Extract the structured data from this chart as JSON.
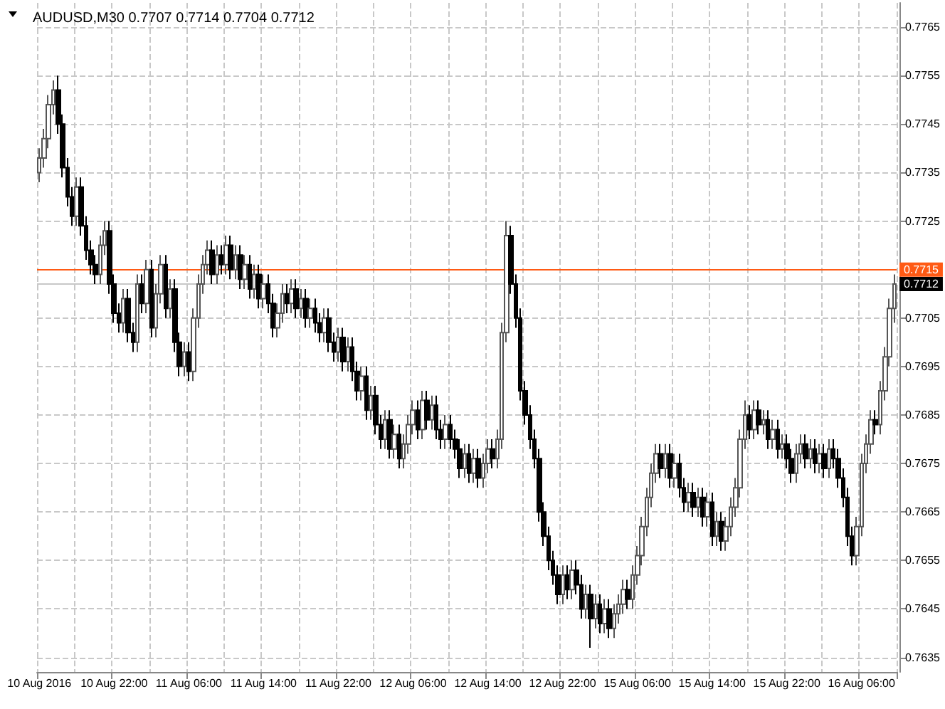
{
  "chart_data": {
    "type": "candlestick",
    "title": "AUDUSD,M30 0.7707 0.7714 0.7704 0.7712",
    "categories": [
      "10 Aug 2016",
      null,
      null,
      null,
      null,
      null,
      null,
      null,
      null,
      null,
      null,
      null,
      null,
      null,
      null,
      null,
      "10 Aug 22:00",
      null,
      null,
      null,
      null,
      null,
      null,
      null,
      null,
      null,
      null,
      null,
      null,
      null,
      null,
      null,
      "11 Aug 06:00",
      null,
      null,
      null,
      null,
      null,
      null,
      null,
      null,
      null,
      null,
      null,
      null,
      null,
      null,
      null,
      "11 Aug 14:00",
      null,
      null,
      null,
      null,
      null,
      null,
      null,
      null,
      null,
      null,
      null,
      null,
      null,
      null,
      null,
      "11 Aug 22:00",
      null,
      null,
      null,
      null,
      null,
      null,
      null,
      null,
      null,
      null,
      null,
      null,
      null,
      null,
      null,
      "12 Aug 06:00",
      null,
      null,
      null,
      null,
      null,
      null,
      null,
      null,
      null,
      null,
      null,
      null,
      null,
      null,
      null,
      "12 Aug 14:00",
      null,
      null,
      null,
      null,
      null,
      null,
      null,
      null,
      null,
      null,
      null,
      null,
      null,
      null,
      null,
      "12 Aug 22:00",
      null,
      null,
      null,
      null,
      null,
      null,
      null,
      null,
      null,
      null,
      null,
      null,
      null,
      null,
      null,
      "15 Aug 06:00",
      null,
      null,
      null,
      null,
      null,
      null,
      null,
      null,
      null,
      null,
      null,
      null,
      null,
      null,
      null,
      "15 Aug 14:00",
      null,
      null,
      null,
      null,
      null,
      null,
      null,
      null,
      null,
      null,
      null,
      null,
      null,
      null,
      null,
      "15 Aug 22:00",
      null,
      null,
      null,
      null,
      null,
      null,
      null,
      null,
      null,
      null,
      null,
      null,
      null,
      null,
      null,
      "16 Aug 06:00",
      null,
      null,
      null,
      null,
      null,
      null,
      null
    ],
    "ohlc": [
      [
        0.7735,
        0.774,
        0.7733,
        0.7738
      ],
      [
        0.7738,
        0.7744,
        0.7736,
        0.7742
      ],
      [
        0.7742,
        0.7751,
        0.774,
        0.7749
      ],
      [
        0.7749,
        0.7754,
        0.7747,
        0.7752
      ],
      [
        0.7752,
        0.7755,
        0.7743,
        0.7745
      ],
      [
        0.7745,
        0.7747,
        0.7734,
        0.7736
      ],
      [
        0.7736,
        0.7738,
        0.7728,
        0.773
      ],
      [
        0.773,
        0.7732,
        0.7724,
        0.7726
      ],
      [
        0.7726,
        0.7734,
        0.7724,
        0.7732
      ],
      [
        0.7732,
        0.7734,
        0.7722,
        0.7724
      ],
      [
        0.7724,
        0.7726,
        0.7717,
        0.7719
      ],
      [
        0.7719,
        0.7721,
        0.7714,
        0.7716
      ],
      [
        0.7716,
        0.7718,
        0.7712,
        0.7714
      ],
      [
        0.7714,
        0.7722,
        0.7712,
        0.772
      ],
      [
        0.772,
        0.7725,
        0.7718,
        0.7723
      ],
      [
        0.7723,
        0.7725,
        0.771,
        0.7712
      ],
      [
        0.7712,
        0.7714,
        0.7704,
        0.7706
      ],
      [
        0.7706,
        0.7708,
        0.7702,
        0.7704
      ],
      [
        0.7704,
        0.7711,
        0.7702,
        0.7709
      ],
      [
        0.7709,
        0.7711,
        0.77,
        0.7702
      ],
      [
        0.7702,
        0.7704,
        0.7698,
        0.77
      ],
      [
        0.77,
        0.7714,
        0.7698,
        0.7712
      ],
      [
        0.7712,
        0.7714,
        0.7706,
        0.7708
      ],
      [
        0.7708,
        0.7717,
        0.7706,
        0.7715
      ],
      [
        0.7715,
        0.7717,
        0.7701,
        0.7703
      ],
      [
        0.7703,
        0.7712,
        0.7701,
        0.771
      ],
      [
        0.771,
        0.7718,
        0.7708,
        0.7716
      ],
      [
        0.7716,
        0.7718,
        0.7705,
        0.7707
      ],
      [
        0.7707,
        0.7713,
        0.7705,
        0.7711
      ],
      [
        0.7711,
        0.7713,
        0.7698,
        0.77
      ],
      [
        0.77,
        0.7702,
        0.7693,
        0.7695
      ],
      [
        0.7695,
        0.77,
        0.7693,
        0.7698
      ],
      [
        0.7698,
        0.77,
        0.7692,
        0.7694
      ],
      [
        0.7694,
        0.7707,
        0.7692,
        0.7705
      ],
      [
        0.7705,
        0.7714,
        0.7703,
        0.7712
      ],
      [
        0.7712,
        0.7718,
        0.771,
        0.7716
      ],
      [
        0.7716,
        0.7721,
        0.7714,
        0.7719
      ],
      [
        0.7719,
        0.7721,
        0.7712,
        0.7714
      ],
      [
        0.7714,
        0.772,
        0.7712,
        0.7718
      ],
      [
        0.7718,
        0.772,
        0.7714,
        0.7716
      ],
      [
        0.7716,
        0.7722,
        0.7714,
        0.772
      ],
      [
        0.772,
        0.7722,
        0.7713,
        0.7715
      ],
      [
        0.7715,
        0.772,
        0.7713,
        0.7718
      ],
      [
        0.7718,
        0.772,
        0.7711,
        0.7713
      ],
      [
        0.7713,
        0.7718,
        0.7711,
        0.7716
      ],
      [
        0.7716,
        0.7718,
        0.7709,
        0.7711
      ],
      [
        0.7711,
        0.7716,
        0.7709,
        0.7714
      ],
      [
        0.7714,
        0.7716,
        0.7707,
        0.7709
      ],
      [
        0.7709,
        0.7714,
        0.7707,
        0.7712
      ],
      [
        0.7712,
        0.7714,
        0.7706,
        0.7708
      ],
      [
        0.7708,
        0.771,
        0.7701,
        0.7703
      ],
      [
        0.7703,
        0.7708,
        0.7701,
        0.7706
      ],
      [
        0.7706,
        0.7712,
        0.7704,
        0.771
      ],
      [
        0.771,
        0.7712,
        0.7706,
        0.7708
      ],
      [
        0.7708,
        0.7713,
        0.7706,
        0.7711
      ],
      [
        0.7711,
        0.7713,
        0.7705,
        0.7707
      ],
      [
        0.7707,
        0.7711,
        0.7705,
        0.7709
      ],
      [
        0.7709,
        0.7711,
        0.7703,
        0.7705
      ],
      [
        0.7705,
        0.7709,
        0.7703,
        0.7707
      ],
      [
        0.7707,
        0.7709,
        0.7702,
        0.7704
      ],
      [
        0.7704,
        0.7706,
        0.77,
        0.7702
      ],
      [
        0.7702,
        0.7707,
        0.77,
        0.7705
      ],
      [
        0.7705,
        0.7707,
        0.7698,
        0.77
      ],
      [
        0.77,
        0.7702,
        0.7696,
        0.7698
      ],
      [
        0.7698,
        0.7703,
        0.7696,
        0.7701
      ],
      [
        0.7701,
        0.7703,
        0.7694,
        0.7696
      ],
      [
        0.7696,
        0.7701,
        0.7694,
        0.7699
      ],
      [
        0.7699,
        0.7701,
        0.7692,
        0.7694
      ],
      [
        0.7694,
        0.7696,
        0.7688,
        0.769
      ],
      [
        0.769,
        0.7695,
        0.7688,
        0.7693
      ],
      [
        0.7693,
        0.7695,
        0.7684,
        0.7686
      ],
      [
        0.7686,
        0.7691,
        0.7684,
        0.7689
      ],
      [
        0.7689,
        0.7691,
        0.7681,
        0.7683
      ],
      [
        0.7683,
        0.7685,
        0.7678,
        0.768
      ],
      [
        0.768,
        0.7686,
        0.7678,
        0.7684
      ],
      [
        0.7684,
        0.7686,
        0.7676,
        0.7678
      ],
      [
        0.7678,
        0.7683,
        0.7676,
        0.7681
      ],
      [
        0.7681,
        0.7683,
        0.7674,
        0.7676
      ],
      [
        0.7676,
        0.7681,
        0.7674,
        0.7679
      ],
      [
        0.7679,
        0.7685,
        0.7677,
        0.7683
      ],
      [
        0.7683,
        0.7688,
        0.7681,
        0.7686
      ],
      [
        0.7686,
        0.7688,
        0.768,
        0.7682
      ],
      [
        0.7682,
        0.769,
        0.768,
        0.7688
      ],
      [
        0.7688,
        0.769,
        0.7682,
        0.7684
      ],
      [
        0.7684,
        0.7689,
        0.7682,
        0.7687
      ],
      [
        0.7687,
        0.7689,
        0.768,
        0.7682
      ],
      [
        0.7682,
        0.7684,
        0.7678,
        0.768
      ],
      [
        0.768,
        0.7685,
        0.7678,
        0.7683
      ],
      [
        0.7683,
        0.7685,
        0.7678,
        0.768
      ],
      [
        0.768,
        0.7682,
        0.7676,
        0.7678
      ],
      [
        0.7678,
        0.768,
        0.7672,
        0.7674
      ],
      [
        0.7674,
        0.7679,
        0.7672,
        0.7677
      ],
      [
        0.7677,
        0.7679,
        0.7671,
        0.7673
      ],
      [
        0.7673,
        0.7678,
        0.7671,
        0.7676
      ],
      [
        0.7676,
        0.7678,
        0.767,
        0.7672
      ],
      [
        0.7672,
        0.7677,
        0.767,
        0.7675
      ],
      [
        0.7675,
        0.768,
        0.7673,
        0.7678
      ],
      [
        0.7678,
        0.768,
        0.7674,
        0.7676
      ],
      [
        0.7676,
        0.7682,
        0.7674,
        0.768
      ],
      [
        0.768,
        0.7704,
        0.7678,
        0.7702
      ],
      [
        0.7702,
        0.7725,
        0.77,
        0.7722
      ],
      [
        0.7722,
        0.7724,
        0.771,
        0.7712
      ],
      [
        0.7712,
        0.7714,
        0.7703,
        0.7705
      ],
      [
        0.7705,
        0.7707,
        0.7688,
        0.769
      ],
      [
        0.769,
        0.7692,
        0.7683,
        0.7685
      ],
      [
        0.7685,
        0.7687,
        0.7678,
        0.768
      ],
      [
        0.768,
        0.7682,
        0.7674,
        0.7676
      ],
      [
        0.7676,
        0.7678,
        0.7663,
        0.7665
      ],
      [
        0.7665,
        0.7667,
        0.7658,
        0.766
      ],
      [
        0.766,
        0.7662,
        0.7653,
        0.7655
      ],
      [
        0.7655,
        0.7657,
        0.765,
        0.7652
      ],
      [
        0.7652,
        0.7654,
        0.7646,
        0.7648
      ],
      [
        0.7648,
        0.7654,
        0.7646,
        0.7652
      ],
      [
        0.7652,
        0.7654,
        0.7647,
        0.7649
      ],
      [
        0.7649,
        0.7655,
        0.7647,
        0.7653
      ],
      [
        0.7653,
        0.7655,
        0.7648,
        0.765
      ],
      [
        0.765,
        0.7652,
        0.7643,
        0.7645
      ],
      [
        0.7645,
        0.765,
        0.7643,
        0.7648
      ],
      [
        0.7648,
        0.765,
        0.7637,
        0.7643
      ],
      [
        0.7643,
        0.7648,
        0.7641,
        0.7646
      ],
      [
        0.7646,
        0.7648,
        0.764,
        0.7642
      ],
      [
        0.7642,
        0.7647,
        0.764,
        0.7645
      ],
      [
        0.7645,
        0.7647,
        0.7639,
        0.7641
      ],
      [
        0.7641,
        0.7646,
        0.7639,
        0.7644
      ],
      [
        0.7644,
        0.7648,
        0.7642,
        0.7646
      ],
      [
        0.7646,
        0.7651,
        0.7644,
        0.7649
      ],
      [
        0.7649,
        0.7651,
        0.7645,
        0.7647
      ],
      [
        0.7647,
        0.7654,
        0.7645,
        0.7652
      ],
      [
        0.7652,
        0.7658,
        0.765,
        0.7656
      ],
      [
        0.7656,
        0.7664,
        0.7654,
        0.7662
      ],
      [
        0.7662,
        0.767,
        0.766,
        0.7668
      ],
      [
        0.7668,
        0.7675,
        0.7666,
        0.7673
      ],
      [
        0.7673,
        0.7679,
        0.7671,
        0.7677
      ],
      [
        0.7677,
        0.7679,
        0.7672,
        0.7674
      ],
      [
        0.7674,
        0.7679,
        0.7672,
        0.7677
      ],
      [
        0.7677,
        0.7679,
        0.767,
        0.7672
      ],
      [
        0.7672,
        0.7677,
        0.767,
        0.7675
      ],
      [
        0.7675,
        0.7677,
        0.7668,
        0.767
      ],
      [
        0.767,
        0.7672,
        0.7665,
        0.7667
      ],
      [
        0.7667,
        0.7671,
        0.7665,
        0.7669
      ],
      [
        0.7669,
        0.7671,
        0.7664,
        0.7666
      ],
      [
        0.7666,
        0.767,
        0.7664,
        0.7668
      ],
      [
        0.7668,
        0.767,
        0.7662,
        0.7664
      ],
      [
        0.7664,
        0.7669,
        0.7662,
        0.7667
      ],
      [
        0.7667,
        0.7669,
        0.7658,
        0.766
      ],
      [
        0.766,
        0.7665,
        0.7658,
        0.7663
      ],
      [
        0.7663,
        0.7665,
        0.7657,
        0.7659
      ],
      [
        0.7659,
        0.7664,
        0.7657,
        0.7662
      ],
      [
        0.7662,
        0.7668,
        0.766,
        0.7666
      ],
      [
        0.7666,
        0.7672,
        0.7664,
        0.767
      ],
      [
        0.767,
        0.7682,
        0.7668,
        0.768
      ],
      [
        0.768,
        0.7688,
        0.7678,
        0.7685
      ],
      [
        0.7685,
        0.7687,
        0.768,
        0.7682
      ],
      [
        0.7682,
        0.7688,
        0.768,
        0.7686
      ],
      [
        0.7686,
        0.7688,
        0.7681,
        0.7683
      ],
      [
        0.7683,
        0.7686,
        0.7681,
        0.7684
      ],
      [
        0.7684,
        0.7686,
        0.7678,
        0.768
      ],
      [
        0.768,
        0.7684,
        0.7678,
        0.7682
      ],
      [
        0.7682,
        0.7684,
        0.7676,
        0.7678
      ],
      [
        0.7678,
        0.7681,
        0.7676,
        0.7679
      ],
      [
        0.7679,
        0.7681,
        0.7674,
        0.7676
      ],
      [
        0.7676,
        0.7678,
        0.7671,
        0.7673
      ],
      [
        0.7673,
        0.7679,
        0.7671,
        0.7677
      ],
      [
        0.7677,
        0.7681,
        0.7675,
        0.7679
      ],
      [
        0.7679,
        0.7681,
        0.7674,
        0.7676
      ],
      [
        0.7676,
        0.768,
        0.7674,
        0.7678
      ],
      [
        0.7678,
        0.768,
        0.7673,
        0.7675
      ],
      [
        0.7675,
        0.7679,
        0.7673,
        0.7677
      ],
      [
        0.7677,
        0.7679,
        0.7672,
        0.7674
      ],
      [
        0.7674,
        0.768,
        0.7672,
        0.7678
      ],
      [
        0.7678,
        0.768,
        0.7674,
        0.7676
      ],
      [
        0.7676,
        0.7678,
        0.767,
        0.7672
      ],
      [
        0.7672,
        0.7674,
        0.7666,
        0.7668
      ],
      [
        0.7668,
        0.767,
        0.7658,
        0.766
      ],
      [
        0.766,
        0.7662,
        0.7654,
        0.7656
      ],
      [
        0.7656,
        0.7664,
        0.7654,
        0.7662
      ],
      [
        0.7662,
        0.7677,
        0.766,
        0.7675
      ],
      [
        0.7675,
        0.7681,
        0.7673,
        0.7679
      ],
      [
        0.7679,
        0.7686,
        0.7677,
        0.7684
      ],
      [
        0.7684,
        0.7686,
        0.7681,
        0.7683
      ],
      [
        0.7683,
        0.7692,
        0.7681,
        0.769
      ],
      [
        0.769,
        0.7699,
        0.7688,
        0.7697
      ],
      [
        0.7697,
        0.7709,
        0.7695,
        0.7707
      ],
      [
        0.7707,
        0.7714,
        0.7704,
        0.7712
      ]
    ],
    "ylim": [
      0.7632,
      0.777
    ],
    "yticks": [
      0.7635,
      0.7645,
      0.7655,
      0.7665,
      0.7675,
      0.7685,
      0.7695,
      0.7705,
      0.7715,
      0.7725,
      0.7735,
      0.7745,
      0.7755,
      0.7765
    ],
    "grid": true,
    "ref_lines": [
      {
        "axis": "y",
        "value": 0.7715,
        "label": "0.7715",
        "color": "#ff5a14"
      },
      {
        "axis": "y",
        "value": 0.7712,
        "label": "0.7712",
        "color": "#c8c8c8"
      }
    ]
  }
}
